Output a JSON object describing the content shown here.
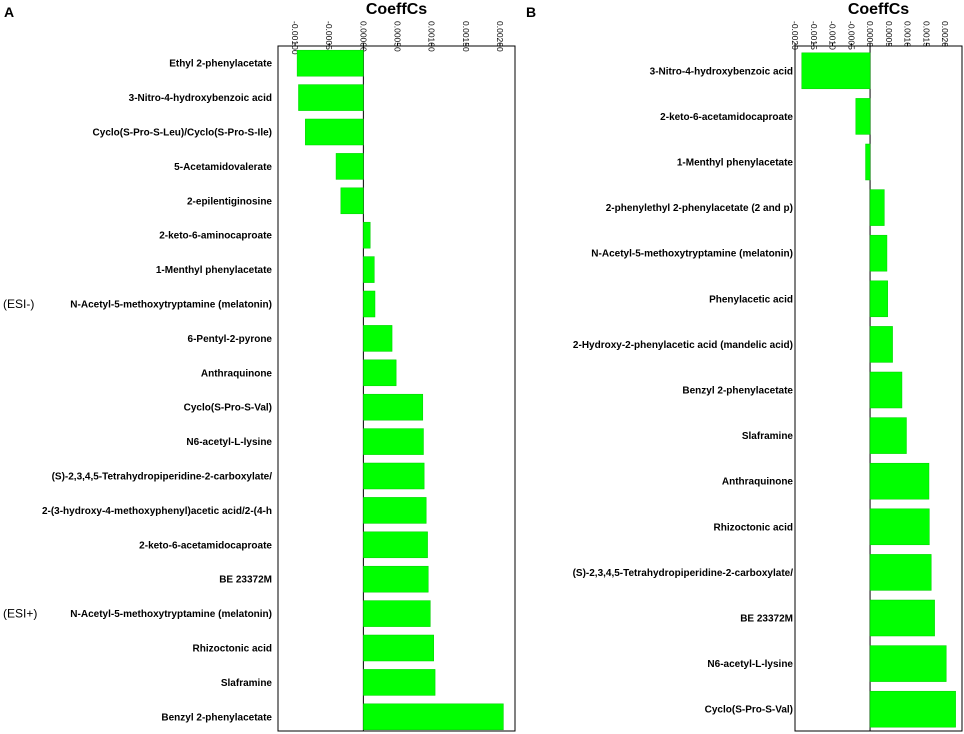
{
  "chart_data": [
    {
      "type": "bar",
      "orientation": "horizontal",
      "panel": "A",
      "title": "CoeffCs",
      "xlim": [
        -0.00125,
        0.00222
      ],
      "ticks": [
        -0.001,
        -0.0005,
        0,
        0.0005,
        0.001,
        0.0015,
        0.002
      ],
      "tick_labels": [
        "-0.00100",
        "-0.00050",
        "0.00000",
        "0.00050",
        "0.00100",
        "0.00150",
        "0.00200"
      ],
      "group_labels": [
        {
          "text": "(ESI-)",
          "row": 7
        },
        {
          "text": "(ESI+)",
          "row": 16
        }
      ],
      "categories": [
        "Ethyl 2-phenylacetate",
        "3-Nitro-4-hydroxybenzoic acid",
        "Cyclo(S-Pro-S-Leu)/Cyclo(S-Pro-S-Ile)",
        "5-Acetamidovalerate",
        "2-epilentiginosine",
        "2-keto-6-aminocaproate",
        "1-Menthyl phenylacetate",
        "N-Acetyl-5-methoxytryptamine (melatonin)",
        "6-Pentyl-2-pyrone",
        "Anthraquinone",
        "Cyclo(S-Pro-S-Val)",
        "N6-acetyl-L-lysine",
        "(S)-2,3,4,5-Tetrahydropiperidine-2-carboxylate/",
        "2-(3-hydroxy-4-methoxyphenyl)acetic acid/2-(4-h",
        "2-keto-6-acetamidocaproate",
        "BE 23372M",
        "N-Acetyl-5-methoxytryptamine (melatonin)",
        "Rhizoctonic acid",
        "Slaframine",
        "Benzyl 2-phenylacetate"
      ],
      "values": [
        -0.00097,
        -0.00095,
        -0.00085,
        -0.0004,
        -0.00033,
        0.0001,
        0.00016,
        0.00017,
        0.00042,
        0.00048,
        0.00087,
        0.00088,
        0.00089,
        0.00092,
        0.00094,
        0.00095,
        0.00098,
        0.00103,
        0.00105,
        0.00205
      ]
    },
    {
      "type": "bar",
      "orientation": "horizontal",
      "panel": "B",
      "title": "CoeffCs",
      "xlim": [
        -0.002,
        0.00245
      ],
      "ticks": [
        -0.002,
        -0.0015,
        -0.001,
        -0.0005,
        0,
        0.0005,
        0.001,
        0.0015,
        0.002
      ],
      "tick_labels": [
        "-0.0020",
        "-0.0015",
        "-0.0010",
        "-0.0005",
        "0.0000",
        "0.0005",
        "0.0010",
        "0.0015",
        "0.0020"
      ],
      "categories": [
        "3-Nitro-4-hydroxybenzoic acid",
        "2-keto-6-acetamidocaproate",
        "1-Menthyl phenylacetate",
        "2-phenylethyl 2-phenylacetate (2 and p)",
        "N-Acetyl-5-methoxytryptamine (melatonin)",
        "Phenylacetic acid",
        "2-Hydroxy-2-phenylacetic acid (mandelic acid)",
        "Benzyl 2-phenylacetate",
        "Slaframine",
        "Anthraquinone",
        "Rhizoctonic acid",
        "(S)-2,3,4,5-Tetrahydropiperidine-2-carboxylate/",
        "BE 23372M",
        "N6-acetyl-L-lysine",
        "Cyclo(S-Pro-S-Val)"
      ],
      "values": [
        -0.00182,
        -0.00038,
        -0.00012,
        0.00038,
        0.00045,
        0.00047,
        0.0006,
        0.00085,
        0.00097,
        0.00157,
        0.00158,
        0.00163,
        0.00172,
        0.00203,
        0.00228
      ]
    }
  ]
}
